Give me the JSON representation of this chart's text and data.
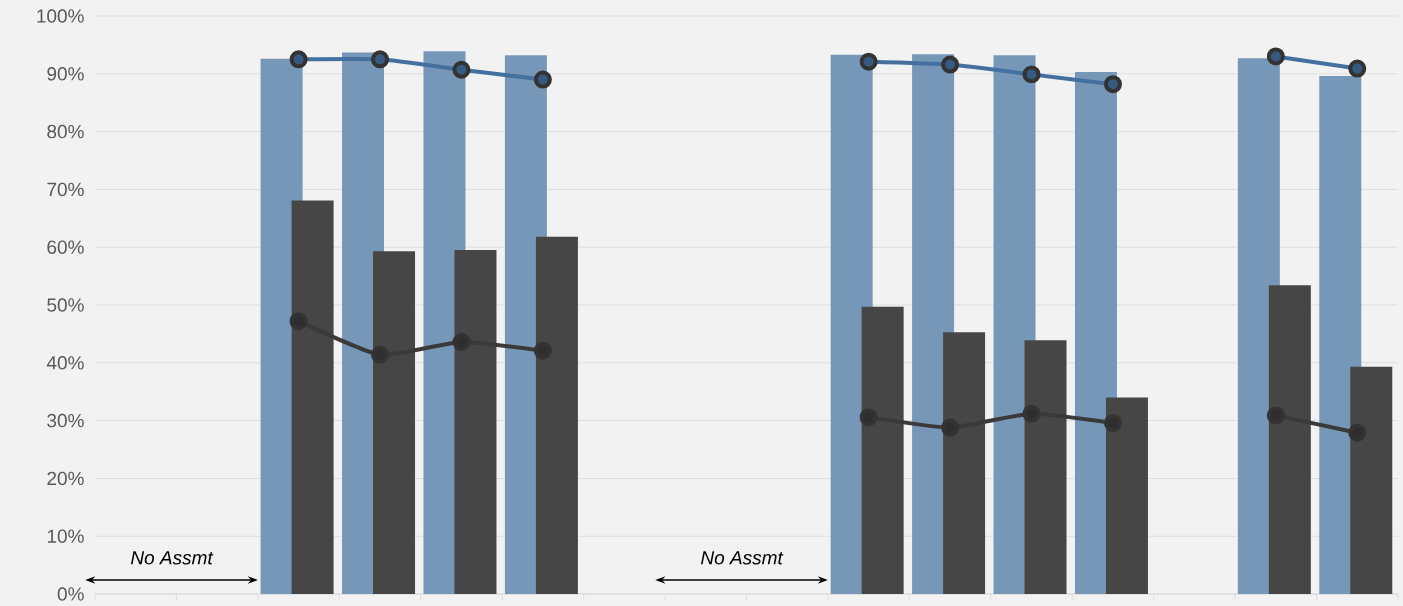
{
  "chart_data": {
    "type": "bar",
    "categories": [
      null,
      null,
      null,
      null,
      null,
      null,
      null,
      null,
      null,
      null,
      null,
      null,
      null,
      null,
      null,
      null
    ],
    "series": [
      {
        "color": "#7797b8",
        "values": [
          null,
          null,
          92.6,
          93.7,
          93.9,
          93.2,
          null,
          null,
          null,
          93.3,
          93.4,
          93.2,
          90.3,
          null,
          92.7,
          89.6
        ]
      },
      {
        "color": "#464646",
        "values": [
          null,
          null,
          68.1,
          59.3,
          59.5,
          61.8,
          null,
          null,
          null,
          49.7,
          45.3,
          43.9,
          34.0,
          null,
          53.4,
          39.3
        ]
      },
      {
        "type": "line",
        "color": "#4470a0",
        "values": [
          null,
          null,
          92.5,
          92.5,
          90.7,
          89.0,
          null,
          null,
          null,
          92.1,
          91.6,
          89.9,
          88.2,
          null,
          93.0,
          90.9
        ]
      },
      {
        "type": "line",
        "color": "#3a3a3a",
        "values": [
          null,
          null,
          47.2,
          41.4,
          43.6,
          42.1,
          null,
          null,
          null,
          30.6,
          28.8,
          31.2,
          29.6,
          null,
          30.9,
          27.9
        ]
      }
    ],
    "ylim": [
      0,
      100
    ],
    "yticks": [
      {
        "value": 0,
        "label": "0%"
      },
      {
        "value": 10,
        "label": "10%"
      },
      {
        "value": 20,
        "label": "20%"
      },
      {
        "value": 30,
        "label": "30%"
      },
      {
        "value": 40,
        "label": "40%"
      },
      {
        "value": 50,
        "label": "50%"
      },
      {
        "value": 60,
        "label": "60%"
      },
      {
        "value": 70,
        "label": "70%"
      },
      {
        "value": 80,
        "label": "80%"
      },
      {
        "value": 90,
        "label": "90%"
      },
      {
        "value": 100,
        "label": "100%"
      }
    ],
    "annotations": [
      "No Assmt",
      "No Assmt"
    ],
    "grid": "y",
    "marker": "circle",
    "tick_labels": "y"
  }
}
